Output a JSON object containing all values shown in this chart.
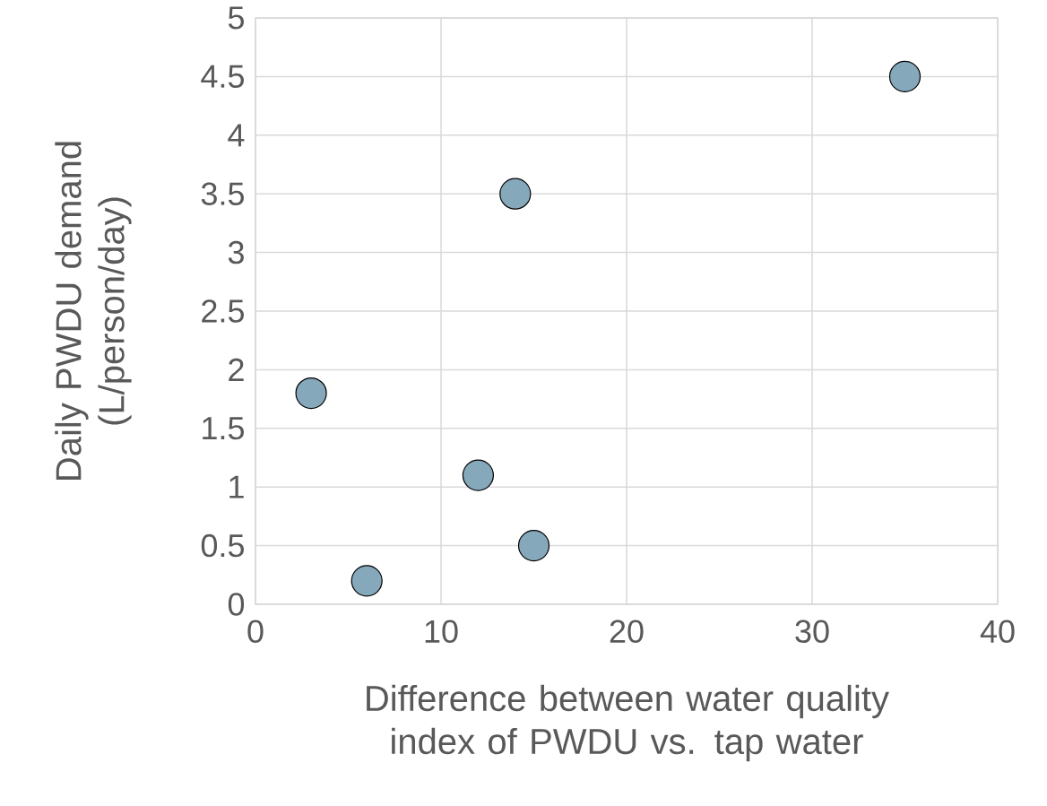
{
  "chart_data": {
    "type": "scatter",
    "xlabel": "Difference between water quality index of PWDU vs. tap water",
    "ylabel": "Daily PWDU demand (L/person/day)",
    "x": [
      3,
      6,
      12,
      15,
      14,
      35
    ],
    "values": [
      1.8,
      0.2,
      1.1,
      0.5,
      3.5,
      4.5
    ],
    "color": "#86a8bb",
    "marker": "circle",
    "grid": true,
    "xlim": [
      0,
      40
    ],
    "xticks": [
      0,
      10,
      20,
      30,
      40
    ],
    "ylim": [
      0,
      5
    ],
    "yticks": [
      0,
      {
        "value": 0.5,
        "label": "0.5"
      },
      1,
      {
        "value": 1.5,
        "label": "1.5"
      },
      2,
      {
        "value": 2.5,
        "label": "2.5"
      },
      3,
      {
        "value": 3.5,
        "label": "3.5"
      },
      4,
      {
        "value": 4.5,
        "label": "4.5"
      },
      5
    ]
  }
}
